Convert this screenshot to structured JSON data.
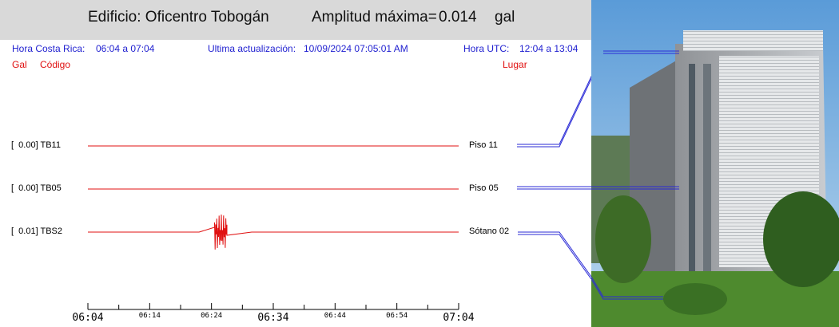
{
  "header": {
    "building": "Edificio: Oficentro Tobogán",
    "amplitude_label": "Amplitud máxima=",
    "amplitude_value": "0.014",
    "amplitude_unit": "gal"
  },
  "info": {
    "cr_label": "Hora Costa Rica:",
    "cr_range": "06:04 a 07:04",
    "update_label": "Ultima actualización:",
    "update_value": "10/09/2024 07:05:01 AM",
    "utc_label": "Hora UTC:",
    "utc_range": "12:04 a 13:04"
  },
  "columns": {
    "gal": "Gal",
    "code": "Código",
    "place": "Lugar"
  },
  "colors": {
    "trace": "#e01010",
    "info_text": "#1f1fd0",
    "header_bg": "#d9d9d9",
    "leader": "#2b2bd6"
  },
  "chart_data": {
    "type": "line",
    "title": "",
    "xlabel": "",
    "ylabel": "",
    "x_range": [
      "06:04",
      "07:04"
    ],
    "x_ticks": [
      "06:04",
      "06:14",
      "06:24",
      "06:34",
      "06:44",
      "06:54",
      "07:04"
    ],
    "x_tick_major": [
      "06:04",
      "06:34",
      "07:04"
    ],
    "series": [
      {
        "name": "TB11",
        "gal": "[  0.00] TB11",
        "place": "Piso 11",
        "peak_gal": 0.0,
        "burst_start_min": null,
        "burst_end_min": null
      },
      {
        "name": "TB05",
        "gal": "[  0.00] TB05",
        "place": "Piso 05",
        "peak_gal": 0.0,
        "burst_start_min": null,
        "burst_end_min": null
      },
      {
        "name": "TBS2",
        "gal": "[  0.01] TBS2",
        "place": "Sótano 02",
        "peak_gal": 0.014,
        "burst_start_min": 20.5,
        "burst_end_min": 22.5
      }
    ]
  }
}
